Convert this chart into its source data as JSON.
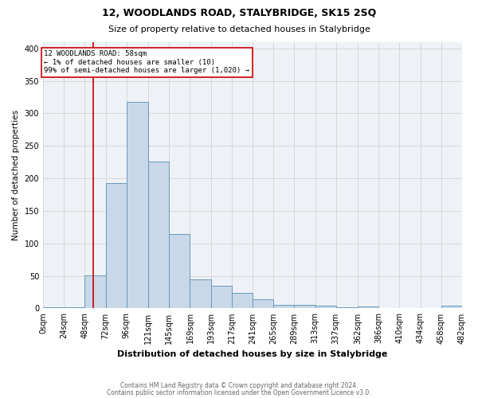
{
  "title": "12, WOODLANDS ROAD, STALYBRIDGE, SK15 2SQ",
  "subtitle": "Size of property relative to detached houses in Stalybridge",
  "xlabel": "Distribution of detached houses by size in Stalybridge",
  "ylabel": "Number of detached properties",
  "footer1": "Contains HM Land Registry data © Crown copyright and database right 2024.",
  "footer2": "Contains public sector information licensed under the Open Government Licence v3.0.",
  "bin_edges": [
    0,
    24,
    48,
    72,
    96,
    121,
    145,
    169,
    193,
    217,
    241,
    265,
    289,
    313,
    337,
    362,
    386,
    410,
    434,
    458,
    482
  ],
  "bin_labels": [
    "0sqm",
    "24sqm",
    "48sqm",
    "72sqm",
    "96sqm",
    "121sqm",
    "145sqm",
    "169sqm",
    "193sqm",
    "217sqm",
    "241sqm",
    "265sqm",
    "289sqm",
    "313sqm",
    "337sqm",
    "362sqm",
    "386sqm",
    "410sqm",
    "434sqm",
    "458sqm",
    "482sqm"
  ],
  "bar_heights": [
    2,
    2,
    51,
    193,
    318,
    226,
    114,
    45,
    35,
    24,
    14,
    6,
    5,
    4,
    2,
    3,
    0,
    0,
    1,
    4
  ],
  "bar_color": "#c8d8e8",
  "bar_edge_color": "#6699bb",
  "grid_color": "#cccccc",
  "background_color": "#eef2f7",
  "property_line_x": 58,
  "property_line_color": "#cc0000",
  "annotation_text": "12 WOODLANDS ROAD: 58sqm\n← 1% of detached houses are smaller (10)\n99% of semi-detached houses are larger (1,020) →",
  "annotation_box_color": "#ffffff",
  "annotation_box_edge": "#cc0000",
  "ylim": [
    0,
    410
  ],
  "yticks": [
    0,
    50,
    100,
    150,
    200,
    250,
    300,
    350,
    400
  ]
}
